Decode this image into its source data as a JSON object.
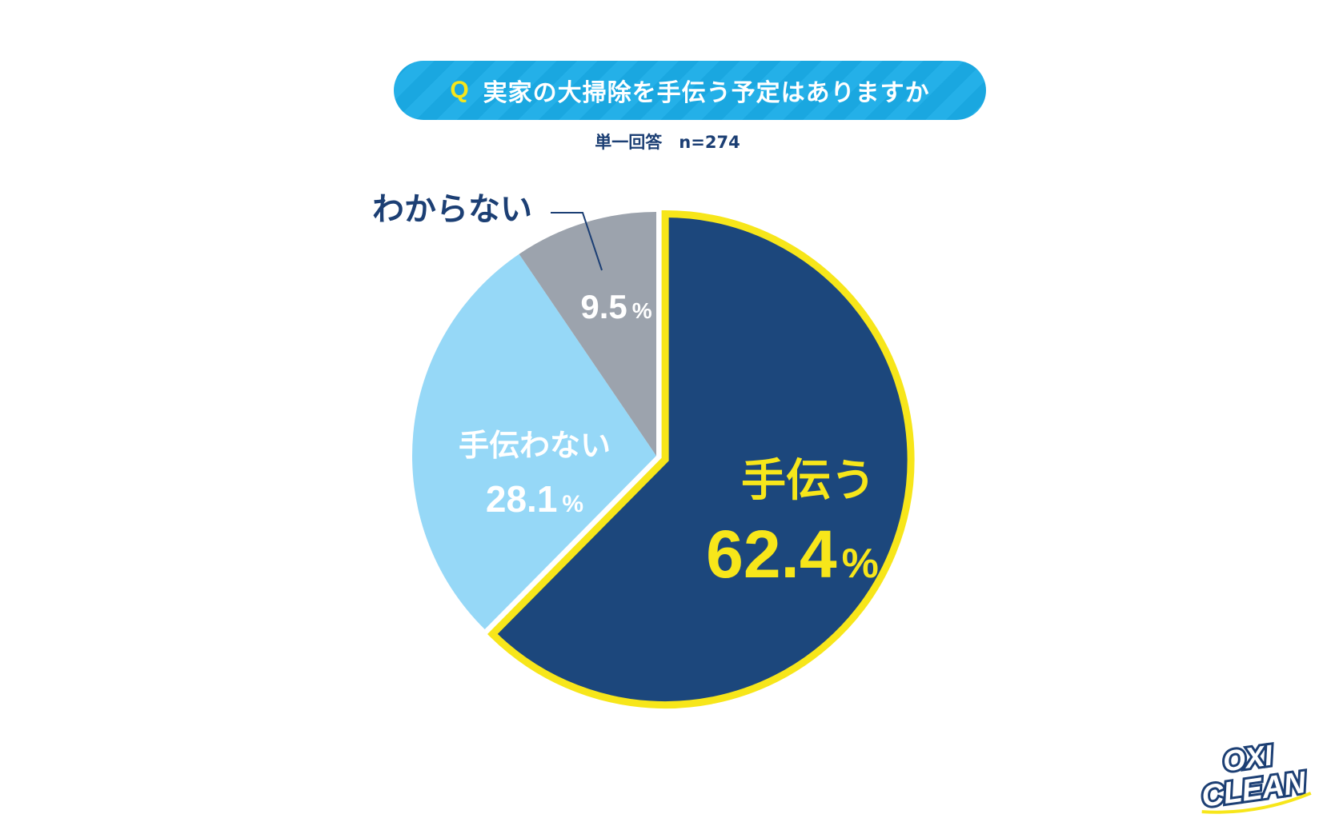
{
  "header": {
    "q_mark": "Q",
    "title": "実家の大掃除を手伝う予定はありますか",
    "subtitle": "単一回答　n=274"
  },
  "chart_data": {
    "type": "pie",
    "title": "実家の大掃除を手伝う予定はありますか",
    "categories": [
      "手伝う",
      "手伝わない",
      "わからない"
    ],
    "values": [
      62.4,
      28.1,
      9.5
    ],
    "value_labels": [
      "62.4",
      "28.1",
      "9.5"
    ],
    "unit": "%",
    "colors": [
      "#1c477c",
      "#96d8f7",
      "#9ca3ad"
    ],
    "label_colors": [
      "#f7e61a",
      "#ffffff",
      "#1c3f74"
    ],
    "highlight": {
      "category": "手伝う",
      "outline_color": "#f7e61a"
    },
    "start_angle_deg": 0,
    "direction": "clockwise"
  },
  "logo": {
    "line1": "OXI",
    "line2": "CLEAN",
    "colors": {
      "fill": "#ffffff",
      "outline": "#1c3f74",
      "accent": "#f7e61a"
    }
  }
}
